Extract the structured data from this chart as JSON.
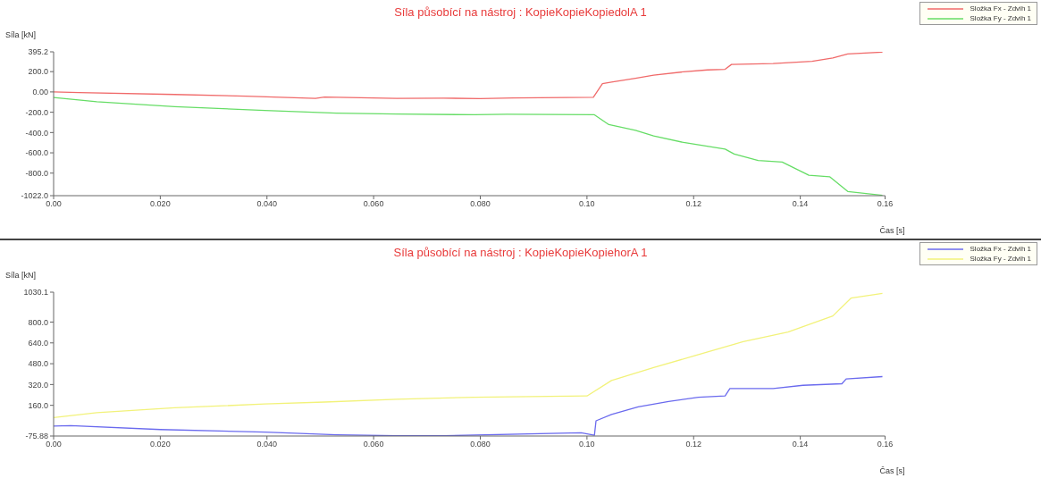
{
  "chart_data": [
    {
      "type": "line",
      "title": "Síla působící na nástroj : KopieKopieKopiedolA 1",
      "ylabel": "Síla [kN]",
      "xlabel": "Čas [s]",
      "xlim": [
        0,
        0.1559
      ],
      "xticks": [
        {
          "value": 0,
          "label": "0.00"
        },
        {
          "value": 0.02,
          "label": "0.020"
        },
        {
          "value": 0.04,
          "label": "0.040"
        },
        {
          "value": 0.06,
          "label": "0.060"
        },
        {
          "value": 0.08,
          "label": "0.080"
        },
        {
          "value": 0.1,
          "label": "0.10"
        },
        {
          "value": 0.12,
          "label": "0.12"
        },
        {
          "value": 0.14,
          "label": "0.14"
        },
        {
          "value": 0.1559,
          "label": "0.16"
        }
      ],
      "ylim": [
        -1022,
        395.2
      ],
      "yticks": [
        {
          "value": 395.2,
          "label": "395.2"
        },
        {
          "value": 200,
          "label": "200.0"
        },
        {
          "value": 0,
          "label": "0.00"
        },
        {
          "value": -200,
          "label": "-200.0"
        },
        {
          "value": -400,
          "label": "-400.0"
        },
        {
          "value": -600,
          "label": "-600.0"
        },
        {
          "value": -800,
          "label": "-800.0"
        },
        {
          "value": -1022,
          "label": "-1022.0"
        }
      ],
      "grid": false,
      "legend": "top right",
      "marker": "none",
      "line_style": "solid",
      "series": [
        {
          "name": "Složka Fx - Zdvih 1",
          "color": "#f06a6a",
          "x": [
            0,
            0.0048,
            0.0227,
            0.036,
            0.0491,
            0.0508,
            0.0643,
            0.0731,
            0.08,
            0.0862,
            0.1012,
            0.1029,
            0.1046,
            0.1091,
            0.1125,
            0.1181,
            0.1226,
            0.1259,
            0.1271,
            0.1349,
            0.1422,
            0.1461,
            0.1489,
            0.1554
          ],
          "values": [
            0,
            -6,
            -25,
            -42,
            -63,
            -50,
            -63,
            -61,
            -66,
            -60,
            -53,
            82,
            97,
            135,
            166,
            198,
            217,
            223,
            271,
            280,
            302,
            334,
            375,
            392
          ]
        },
        {
          "name": "Složka Fy - Zdvih 1",
          "color": "#66dd66",
          "x": [
            0,
            0.0081,
            0.0227,
            0.0396,
            0.053,
            0.0643,
            0.0789,
            0.085,
            0.1014,
            0.1041,
            0.1091,
            0.1125,
            0.1181,
            0.1259,
            0.1276,
            0.1321,
            0.1366,
            0.1416,
            0.1455,
            0.1489,
            0.1554
          ],
          "values": [
            -54,
            -96,
            -145,
            -183,
            -209,
            -218,
            -225,
            -220,
            -225,
            -322,
            -379,
            -434,
            -498,
            -563,
            -611,
            -675,
            -691,
            -820,
            -836,
            -981,
            -1018
          ]
        }
      ]
    },
    {
      "type": "line",
      "title": "Síla působící na nástroj : KopieKopieKopiehorA 1",
      "ylabel": "Síla [kN]",
      "xlabel": "Čas [s]",
      "xlim": [
        0,
        0.1559
      ],
      "xticks": [
        {
          "value": 0,
          "label": "0.00"
        },
        {
          "value": 0.02,
          "label": "0.020"
        },
        {
          "value": 0.04,
          "label": "0.040"
        },
        {
          "value": 0.06,
          "label": "0.060"
        },
        {
          "value": 0.08,
          "label": "0.080"
        },
        {
          "value": 0.1,
          "label": "0.10"
        },
        {
          "value": 0.12,
          "label": "0.12"
        },
        {
          "value": 0.14,
          "label": "0.14"
        },
        {
          "value": 0.1559,
          "label": "0.16"
        }
      ],
      "ylim": [
        -75.88,
        1030.1
      ],
      "yticks": [
        {
          "value": 1030.1,
          "label": "1030.1"
        },
        {
          "value": 800,
          "label": "800.0"
        },
        {
          "value": 640,
          "label": "640.0"
        },
        {
          "value": 480,
          "label": "480.0"
        },
        {
          "value": 320,
          "label": "320.0"
        },
        {
          "value": 160,
          "label": "160.0"
        },
        {
          "value": -75.88,
          "label": "-75.88"
        }
      ],
      "grid": false,
      "legend": "top right",
      "marker": "none",
      "line_style": "solid",
      "series": [
        {
          "name": "Složka Fx - Zdvih 1",
          "color": "#6a6aee",
          "x": [
            0,
            0.0032,
            0.02,
            0.0396,
            0.053,
            0.0643,
            0.0731,
            0.0989,
            0.1014,
            0.1017,
            0.1046,
            0.1096,
            0.1153,
            0.1209,
            0.1259,
            0.1268,
            0.1349,
            0.1405,
            0.1478,
            0.1486,
            0.1554
          ],
          "values": [
            0,
            4,
            -26,
            -46,
            -66,
            -74,
            -74,
            -51,
            -70,
            41,
            90,
            148,
            190,
            222,
            232,
            289,
            289,
            314,
            326,
            363,
            381
          ]
        },
        {
          "name": "Složka Fy - Zdvih 1",
          "color": "#f2f27a",
          "x": [
            0,
            0.0081,
            0.0227,
            0.0396,
            0.0508,
            0.0643,
            0.0789,
            0.1,
            0.1046,
            0.1125,
            0.1209,
            0.1293,
            0.1377,
            0.1461,
            0.1495,
            0.1554
          ],
          "values": [
            66,
            103,
            141,
            170,
            185,
            207,
            222,
            232,
            351,
            450,
            550,
            649,
            723,
            847,
            984,
            1021
          ]
        }
      ]
    }
  ]
}
